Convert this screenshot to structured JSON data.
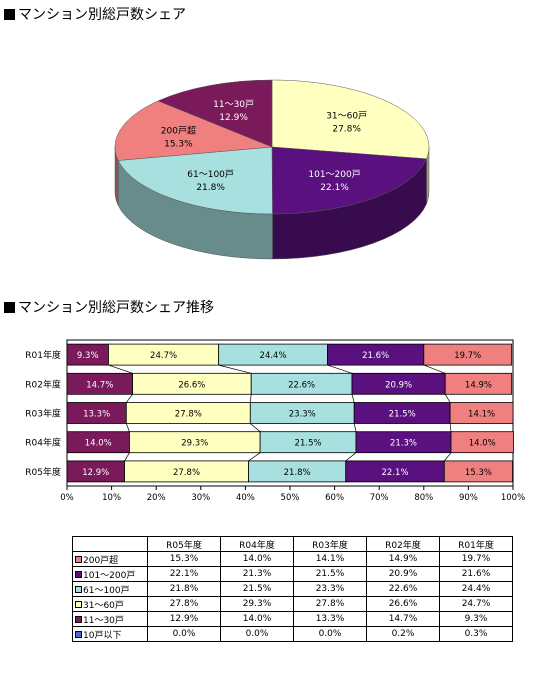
{
  "headings": {
    "pie": "マンション別総戸数シェア",
    "bar": "マンション別総戸数シェア推移"
  },
  "chart_data": [
    {
      "type": "pie",
      "slices": [
        {
          "name": "31～60戸",
          "value": 27.8,
          "label": "27.8%",
          "color": "#ffffc0"
        },
        {
          "name": "101～200戸",
          "value": 22.1,
          "label": "22.1%",
          "color": "#5a107e"
        },
        {
          "name": "61～100戸",
          "value": 21.8,
          "label": "21.8%",
          "color": "#a8e0e0"
        },
        {
          "name": "200戸超",
          "value": 15.3,
          "label": "15.3%",
          "color": "#f08080"
        },
        {
          "name": "11～30戸",
          "value": 12.9,
          "label": "12.9%",
          "color": "#7a1a5a"
        }
      ]
    },
    {
      "type": "bar",
      "orientation": "horizontal-stacked-percent",
      "categories": [
        "R01年度",
        "R02年度",
        "R03年度",
        "R04年度",
        "R05年度"
      ],
      "xlim": [
        0,
        100
      ],
      "xticks": [
        "0%",
        "10%",
        "20%",
        "30%",
        "40%",
        "50%",
        "60%",
        "70%",
        "80%",
        "90%",
        "100%"
      ],
      "series": [
        {
          "name": "11～30戸",
          "color": "#7a1a5a",
          "values": [
            9.3,
            14.7,
            13.3,
            14.0,
            12.9
          ],
          "labels": [
            "9.3%",
            "14.7%",
            "13.3%",
            "14.0%",
            "12.9%"
          ]
        },
        {
          "name": "31～60戸",
          "color": "#ffffc0",
          "values": [
            24.7,
            26.6,
            27.8,
            29.3,
            27.8
          ],
          "labels": [
            "24.7%",
            "26.6%",
            "27.8%",
            "29.3%",
            "27.8%"
          ]
        },
        {
          "name": "61～100戸",
          "color": "#a8e0e0",
          "values": [
            24.4,
            22.6,
            23.3,
            21.5,
            21.8
          ],
          "labels": [
            "24.4%",
            "22.6%",
            "23.3%",
            "21.5%",
            "21.8%"
          ]
        },
        {
          "name": "101～200戸",
          "color": "#5a107e",
          "values": [
            21.6,
            20.9,
            21.5,
            21.3,
            22.1
          ],
          "labels": [
            "21.6%",
            "20.9%",
            "21.5%",
            "21.3%",
            "22.1%"
          ]
        },
        {
          "name": "200戸超",
          "color": "#f08080",
          "values": [
            19.7,
            14.9,
            14.1,
            14.0,
            15.3
          ],
          "labels": [
            "19.7%",
            "14.9%",
            "14.1%",
            "14.0%",
            "15.3%"
          ]
        }
      ]
    },
    {
      "type": "table",
      "columns": [
        "R05年度",
        "R04年度",
        "R03年度",
        "R02年度",
        "R01年度"
      ],
      "rows": [
        {
          "name": "200戸超",
          "color": "#f08080",
          "values": [
            "15.3%",
            "14.0%",
            "14.1%",
            "14.9%",
            "19.7%"
          ]
        },
        {
          "name": "101～200戸",
          "color": "#5a107e",
          "values": [
            "22.1%",
            "21.3%",
            "21.5%",
            "20.9%",
            "21.6%"
          ]
        },
        {
          "name": "61～100戸",
          "color": "#a8e0e0",
          "values": [
            "21.8%",
            "21.5%",
            "23.3%",
            "22.6%",
            "24.4%"
          ]
        },
        {
          "name": "31～60戸",
          "color": "#ffffc0",
          "values": [
            "27.8%",
            "29.3%",
            "27.8%",
            "26.6%",
            "24.7%"
          ]
        },
        {
          "name": "11～30戸",
          "color": "#7a1a5a",
          "values": [
            "12.9%",
            "14.0%",
            "13.3%",
            "14.7%",
            "9.3%"
          ]
        },
        {
          "name": "10戸以下",
          "color": "#4a6ad0",
          "values": [
            "0.0%",
            "0.0%",
            "0.0%",
            "0.2%",
            "0.3%"
          ]
        }
      ]
    }
  ]
}
